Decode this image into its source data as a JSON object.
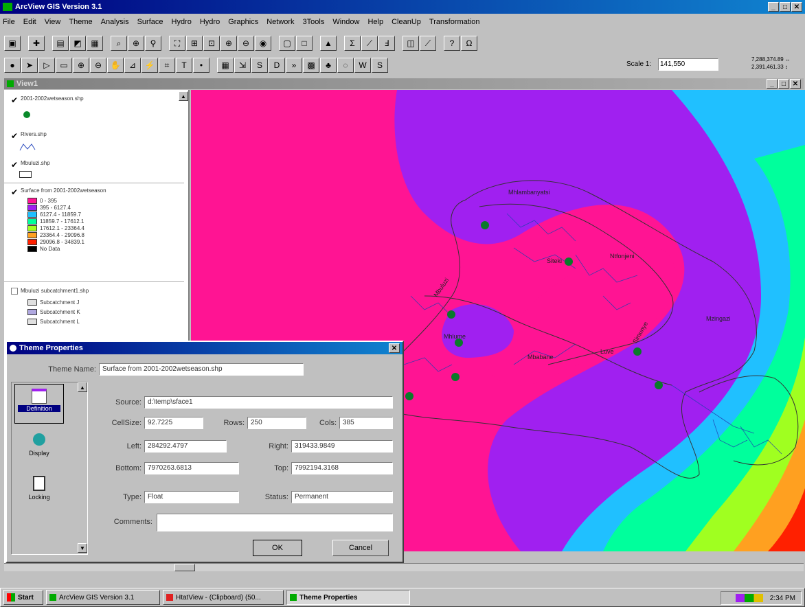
{
  "app": {
    "title": "ArcView GIS Version 3.1",
    "menu": [
      "File",
      "Edit",
      "View",
      "Theme",
      "Analysis",
      "Surface",
      "Hydro",
      "Hydro",
      "Graphics",
      "Network",
      "3Tools",
      "Window",
      "Help",
      "CleanUp",
      "Transformation"
    ],
    "scale_label": "Scale 1:",
    "scale_value": "141,550",
    "coords": "7,288,374.89 ↔\n2,391,461.33 ↕"
  },
  "view": {
    "title": "View1",
    "layers": [
      {
        "name": "2001-2002wetseason.shp",
        "checked": true
      },
      {
        "name": "Rivers.shp",
        "checked": true
      },
      {
        "name": "Mbuluzi.shp",
        "checked": true
      },
      {
        "name": "Surface from 2001-2002wetseason",
        "checked": true
      },
      {
        "name": "Mbuluzi subcatchment1.shp",
        "checked": false
      }
    ],
    "surface_legend": [
      {
        "label": "0 - 395",
        "color": "#ff1493"
      },
      {
        "label": "395 - 6127.4",
        "color": "#a020f0"
      },
      {
        "label": "6127.4 - 11859.7",
        "color": "#20c0ff"
      },
      {
        "label": "11859.7 - 17612.1",
        "color": "#00ff9c"
      },
      {
        "label": "17612.1 - 23364.4",
        "color": "#a0ff20"
      },
      {
        "label": "23364.4 - 29096.8",
        "color": "#ffa020"
      },
      {
        "label": "29096.8 - 34839.1",
        "color": "#ff2000"
      },
      {
        "label": "No Data",
        "color": "#000000"
      }
    ],
    "subcatchment_legend": [
      "Subcatchment J",
      "Subcatchment K",
      "Subcatchment L"
    ],
    "map_labels": [
      "Mhlambanyatsi",
      "Siteki",
      "Ntfonjeni",
      "Mbuluzi",
      "Mhlume",
      "Mbabane",
      "Luve",
      "Simunye",
      "Mzingazi"
    ]
  },
  "dialog": {
    "title": "Theme Properties",
    "theme_name_label": "Theme Name:",
    "theme_name": "Surface from 2001-2002wetseason.shp",
    "categories": [
      "Definition",
      "Display",
      "Locking"
    ],
    "source_label": "Source:",
    "source": "d:\\temp\\sface1",
    "cellsize_label": "CellSize:",
    "cellsize": "92.7225",
    "rows_label": "Rows:",
    "rows": "250",
    "cols_label": "Cols:",
    "cols": "385",
    "left_label": "Left:",
    "left": "284292.4797",
    "right_label": "Right:",
    "right": "319433.9849",
    "bottom_label": "Bottom:",
    "bottom": "7970263.6813",
    "top_label": "Top:",
    "top": "7992194.3168",
    "type_label": "Type:",
    "type": "Float",
    "status_label": "Status:",
    "status": "Permanent",
    "comments_label": "Comments:",
    "comments": "",
    "ok": "OK",
    "cancel": "Cancel"
  },
  "taskbar": {
    "start": "Start",
    "tasks": [
      "ArcView GIS Version 3.1",
      "HtatView - (Clipboard) (50...",
      "Theme Properties"
    ],
    "clock": "2:34 PM"
  }
}
